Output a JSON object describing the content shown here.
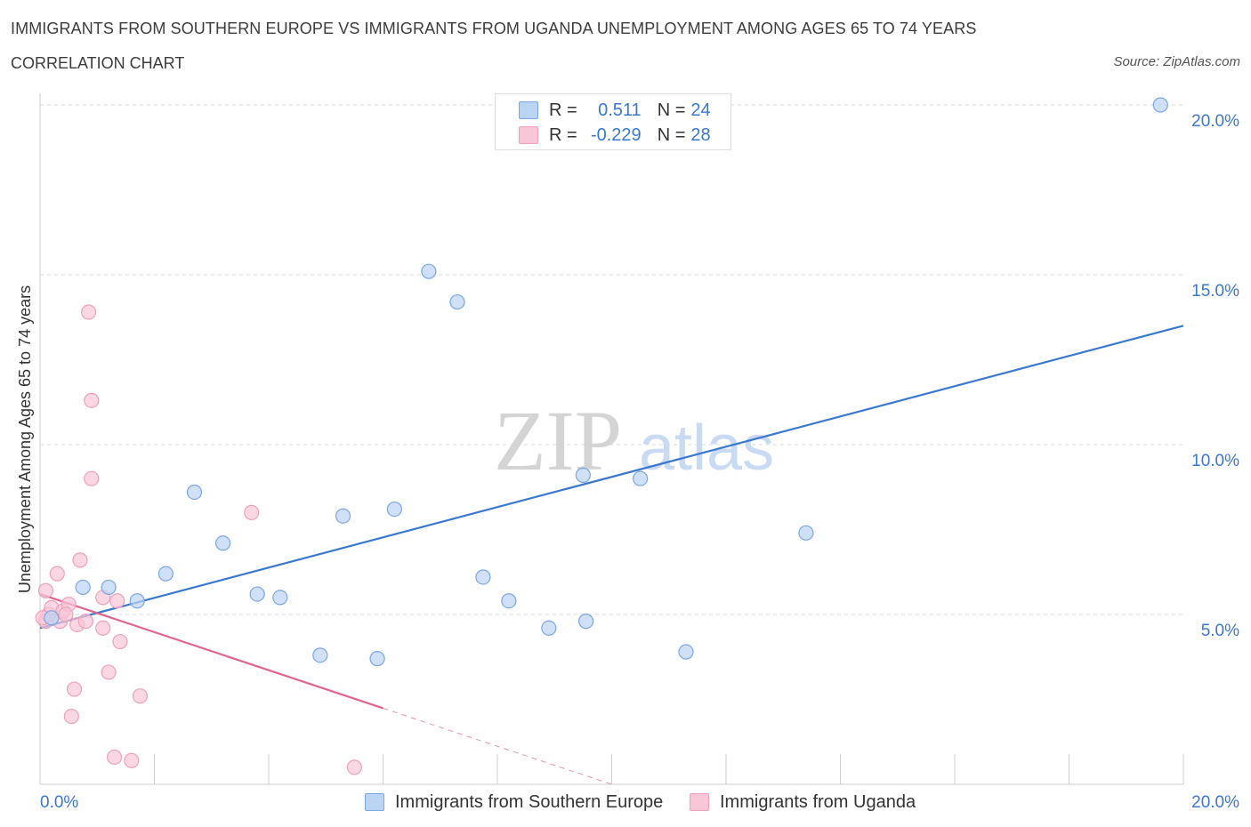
{
  "header": {
    "title": "IMMIGRANTS FROM SOUTHERN EUROPE VS IMMIGRANTS FROM UGANDA UNEMPLOYMENT AMONG AGES 65 TO 74 YEARS",
    "subtitle": "CORRELATION CHART",
    "source": "Source: ZipAtlas.com"
  },
  "colors": {
    "blue": "#3a78d0",
    "blue_fill": "#bcd4f4",
    "pink": "#e0648e",
    "pink_fill": "#f8c6d6",
    "grid": "#d8d8d8",
    "watermark": "#d0d0d0"
  },
  "legend": {
    "rows": [
      {
        "r_label": "R =",
        "r_value": "0.511",
        "n_label": "N =",
        "n_value": "24"
      },
      {
        "r_label": "R =",
        "r_value": "-0.229",
        "n_label": "N =",
        "n_value": "28"
      }
    ]
  },
  "bottom_legend": {
    "series1": "Immigrants from Southern Europe",
    "series2": "Immigrants from Uganda"
  },
  "watermark": {
    "zip": "ZIP",
    "atlas": "atlas"
  },
  "chart_data": {
    "type": "scatter",
    "title": "IMMIGRANTS FROM SOUTHERN EUROPE VS IMMIGRANTS FROM UGANDA UNEMPLOYMENT AMONG AGES 65 TO 74 YEARS",
    "ylabel": "Unemployment Among Ages 65 to 74 years",
    "xlabel": "",
    "xlim": [
      0,
      20
    ],
    "ylim": [
      0,
      20
    ],
    "x_tick_labels": [
      "0.0%",
      "20.0%"
    ],
    "y_ticks": [
      5,
      10,
      15,
      20
    ],
    "y_tick_labels": [
      "5.0%",
      "10.0%",
      "15.0%",
      "20.0%"
    ],
    "grid": true,
    "series": [
      {
        "name": "Immigrants from Southern Europe",
        "color": "#3a78d0",
        "points": [
          [
            0.2,
            4.9
          ],
          [
            0.75,
            5.8
          ],
          [
            1.2,
            5.8
          ],
          [
            1.7,
            5.4
          ],
          [
            2.2,
            6.2
          ],
          [
            2.7,
            8.6
          ],
          [
            3.2,
            7.1
          ],
          [
            3.8,
            5.6
          ],
          [
            4.2,
            5.5
          ],
          [
            4.9,
            3.8
          ],
          [
            5.3,
            7.9
          ],
          [
            5.9,
            3.7
          ],
          [
            6.2,
            8.1
          ],
          [
            6.8,
            15.1
          ],
          [
            7.3,
            14.2
          ],
          [
            7.75,
            6.1
          ],
          [
            8.2,
            5.4
          ],
          [
            8.9,
            4.6
          ],
          [
            9.5,
            9.1
          ],
          [
            9.55,
            4.8
          ],
          [
            10.5,
            9.0
          ],
          [
            11.3,
            3.9
          ],
          [
            13.4,
            7.4
          ],
          [
            19.6,
            20.0
          ]
        ],
        "trend": {
          "x": [
            0,
            20
          ],
          "y": [
            4.6,
            13.5
          ]
        }
      },
      {
        "name": "Immigrants from Uganda",
        "color": "#e0648e",
        "points": [
          [
            0.1,
            5.7
          ],
          [
            0.1,
            4.8
          ],
          [
            0.15,
            5.0
          ],
          [
            0.2,
            5.2
          ],
          [
            0.3,
            6.2
          ],
          [
            0.35,
            4.8
          ],
          [
            0.4,
            5.1
          ],
          [
            0.5,
            5.3
          ],
          [
            0.55,
            2.0
          ],
          [
            0.6,
            2.8
          ],
          [
            0.65,
            4.7
          ],
          [
            0.7,
            6.6
          ],
          [
            0.8,
            4.8
          ],
          [
            0.85,
            13.9
          ],
          [
            0.9,
            11.3
          ],
          [
            0.9,
            9.0
          ],
          [
            1.1,
            4.6
          ],
          [
            1.1,
            5.5
          ],
          [
            1.2,
            3.3
          ],
          [
            1.3,
            0.8
          ],
          [
            1.35,
            5.4
          ],
          [
            1.4,
            4.2
          ],
          [
            1.6,
            0.7
          ],
          [
            1.75,
            2.6
          ],
          [
            3.7,
            8.0
          ],
          [
            5.5,
            0.5
          ],
          [
            0.05,
            4.9
          ],
          [
            0.45,
            5.0
          ]
        ],
        "trend": {
          "x": [
            0,
            10
          ],
          "y": [
            5.6,
            0.0
          ]
        },
        "trend_solid_until_x": 6.0
      }
    ]
  }
}
